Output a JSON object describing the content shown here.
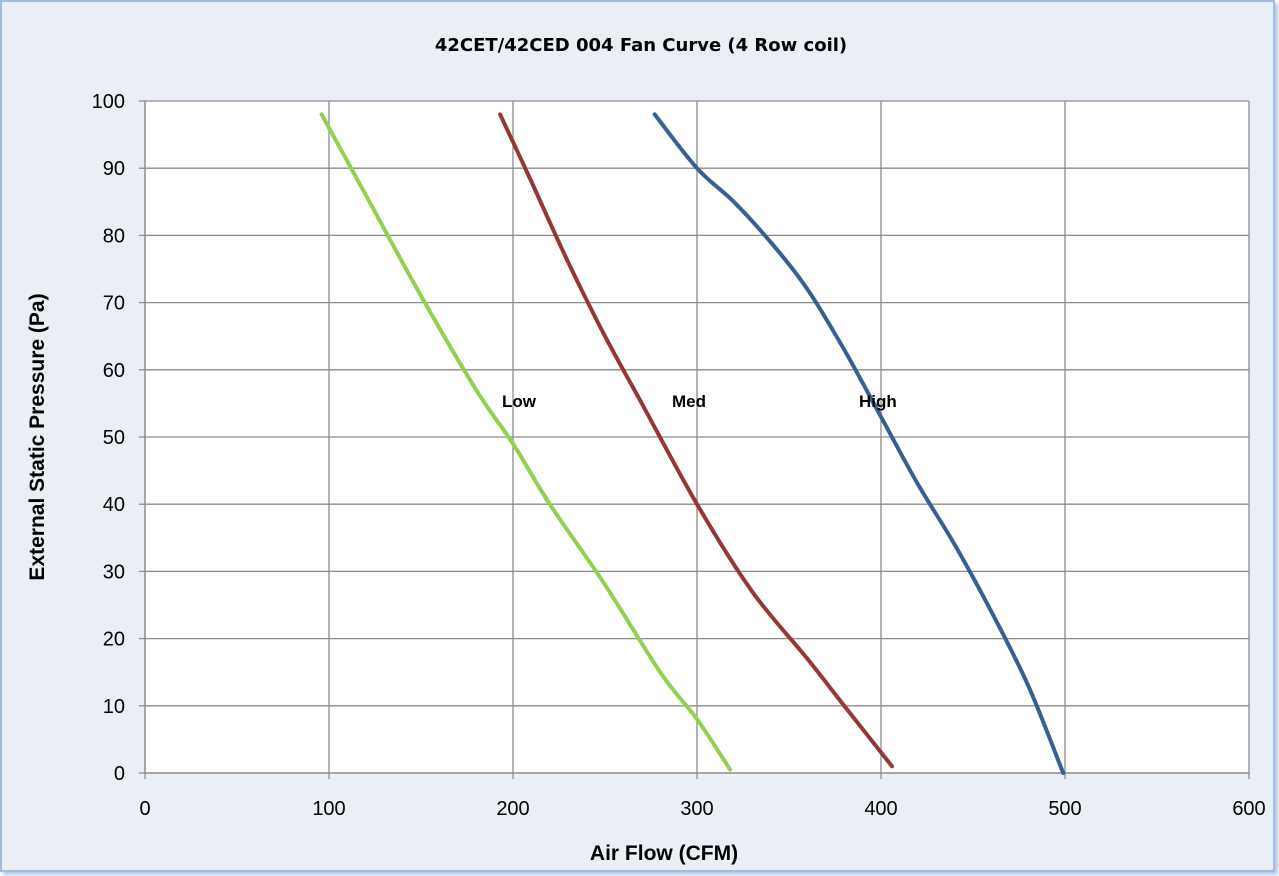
{
  "chart_data": {
    "type": "line",
    "title": "42CET/42CED 004 Fan Curve (4 Row coil)",
    "xlabel": "Air Flow (CFM)",
    "ylabel": "External Static Pressure (Pa)",
    "xlim": [
      0,
      600
    ],
    "ylim": [
      0,
      100
    ],
    "x_ticks": [
      0,
      100,
      200,
      300,
      400,
      500,
      600
    ],
    "y_ticks": [
      0,
      10,
      20,
      30,
      40,
      50,
      60,
      70,
      80,
      90,
      100
    ],
    "grid": true,
    "legend": "none",
    "series": [
      {
        "name": "Low",
        "color": "#92d050",
        "x": [
          96,
          120,
          150,
          180,
          200,
          220,
          250,
          280,
          300,
          318
        ],
        "y": [
          98,
          86,
          71,
          57,
          49,
          40,
          28,
          15,
          8,
          0.5
        ]
      },
      {
        "name": "Med",
        "color": "#953735",
        "x": [
          193,
          210,
          230,
          250,
          270,
          300,
          330,
          360,
          380,
          406
        ],
        "y": [
          98,
          88,
          76,
          65,
          55,
          40,
          27,
          17,
          10,
          1
        ]
      },
      {
        "name": "High",
        "color": "#376092",
        "x": [
          277,
          300,
          320,
          340,
          360,
          380,
          400,
          420,
          440,
          460,
          480,
          499
        ],
        "y": [
          98,
          90,
          85,
          79,
          72,
          63,
          53,
          43,
          34,
          24,
          13,
          0
        ]
      }
    ]
  }
}
